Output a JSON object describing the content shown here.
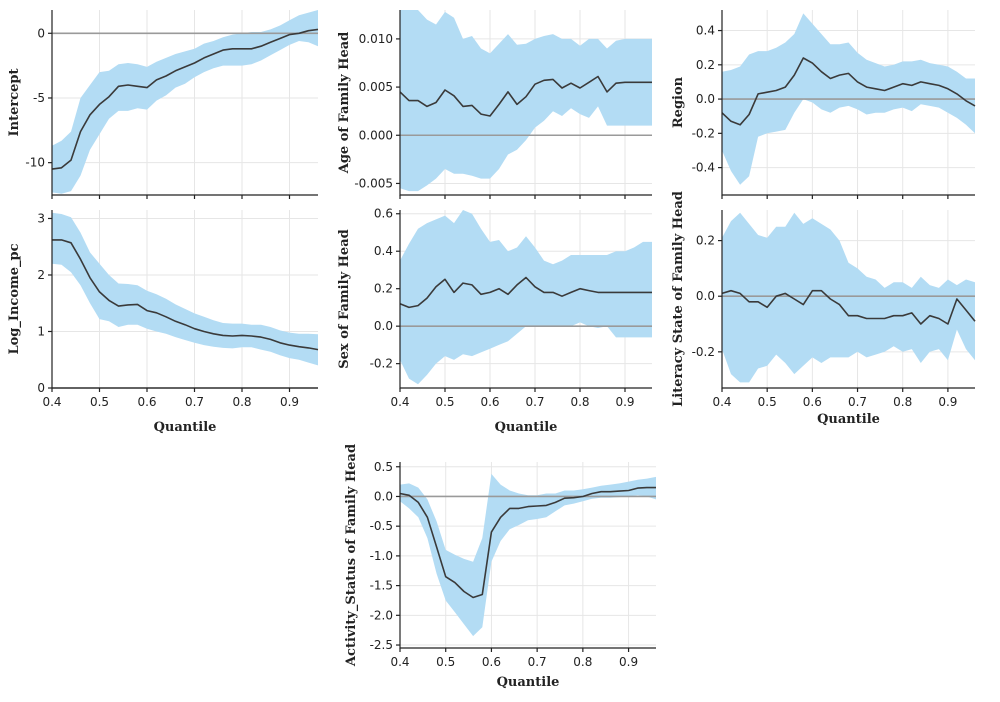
{
  "chart_data": [
    {
      "type": "line",
      "ylabel": "Intercept",
      "xlabel": "",
      "xlim": [
        0.4,
        0.96
      ],
      "ylim": [
        -12.5,
        1.8
      ],
      "xticks": [
        0.4,
        0.5,
        0.6,
        0.7,
        0.8,
        0.9
      ],
      "xtick_labels": [
        "",
        "",
        "",
        "",
        "",
        ""
      ],
      "yticks": [
        0,
        -5,
        -10
      ],
      "ytick_labels": [
        "0",
        "-5",
        "-10"
      ],
      "zero_line": 0,
      "x": [
        0.4,
        0.42,
        0.44,
        0.46,
        0.48,
        0.5,
        0.52,
        0.54,
        0.56,
        0.58,
        0.6,
        0.62,
        0.64,
        0.66,
        0.68,
        0.7,
        0.72,
        0.74,
        0.76,
        0.78,
        0.8,
        0.82,
        0.84,
        0.86,
        0.88,
        0.9,
        0.92,
        0.94,
        0.96
      ],
      "y": [
        -10.5,
        -10.4,
        -9.8,
        -7.6,
        -6.3,
        -5.5,
        -4.9,
        -4.1,
        -4.0,
        -4.1,
        -4.2,
        -3.6,
        -3.3,
        -2.9,
        -2.6,
        -2.3,
        -1.9,
        -1.6,
        -1.3,
        -1.2,
        -1.2,
        -1.2,
        -1.0,
        -0.7,
        -0.4,
        -0.1,
        0.0,
        0.2,
        0.3
      ],
      "lower": [
        -12.3,
        -12.4,
        -12.2,
        -11.0,
        -9.0,
        -7.8,
        -6.6,
        -6.0,
        -6.0,
        -5.8,
        -5.9,
        -5.2,
        -4.8,
        -4.2,
        -3.9,
        -3.4,
        -3.0,
        -2.7,
        -2.5,
        -2.5,
        -2.5,
        -2.4,
        -2.1,
        -1.7,
        -1.3,
        -0.9,
        -0.6,
        -0.7,
        -1.0
      ],
      "upper": [
        -8.7,
        -8.3,
        -7.6,
        -5.0,
        -4.0,
        -3.0,
        -2.9,
        -2.4,
        -2.3,
        -2.4,
        -2.6,
        -2.2,
        -1.9,
        -1.6,
        -1.4,
        -1.2,
        -0.8,
        -0.6,
        -0.3,
        -0.1,
        0.0,
        0.1,
        0.1,
        0.3,
        0.6,
        1.0,
        1.4,
        1.6,
        1.8
      ]
    },
    {
      "type": "line",
      "ylabel": "Age of Family Head",
      "xlabel": "",
      "xlim": [
        0.4,
        0.96
      ],
      "ylim": [
        -0.0062,
        0.013
      ],
      "xticks": [
        0.4,
        0.5,
        0.6,
        0.7,
        0.8,
        0.9
      ],
      "xtick_labels": [
        "",
        "",
        "",
        "",
        "",
        ""
      ],
      "yticks": [
        0.01,
        0.005,
        0.0,
        -0.005
      ],
      "ytick_labels": [
        "0.010",
        "0.005",
        "0.000",
        "-0.005"
      ],
      "zero_line": 0,
      "x": [
        0.4,
        0.42,
        0.44,
        0.46,
        0.48,
        0.5,
        0.52,
        0.54,
        0.56,
        0.58,
        0.6,
        0.62,
        0.64,
        0.66,
        0.68,
        0.7,
        0.72,
        0.74,
        0.76,
        0.78,
        0.8,
        0.82,
        0.84,
        0.86,
        0.88,
        0.9,
        0.92,
        0.94,
        0.96
      ],
      "y": [
        0.0045,
        0.0036,
        0.0036,
        0.003,
        0.0034,
        0.0047,
        0.0041,
        0.003,
        0.0031,
        0.0022,
        0.002,
        0.0032,
        0.0045,
        0.0032,
        0.004,
        0.0053,
        0.0057,
        0.0058,
        0.0049,
        0.0054,
        0.0049,
        0.0055,
        0.0061,
        0.0045,
        0.0054,
        0.0055,
        0.0055,
        0.0055,
        0.0055
      ],
      "lower": [
        -0.0055,
        -0.0058,
        -0.0058,
        -0.0052,
        -0.0045,
        -0.0035,
        -0.004,
        -0.004,
        -0.0042,
        -0.0045,
        -0.0045,
        -0.0035,
        -0.002,
        -0.0015,
        -0.0005,
        0.0008,
        0.0015,
        0.0025,
        0.002,
        0.0028,
        0.0022,
        0.0018,
        0.003,
        0.001,
        0.001,
        0.001,
        0.001,
        0.001,
        0.001
      ],
      "upper": [
        0.013,
        0.013,
        0.013,
        0.012,
        0.0115,
        0.0128,
        0.0122,
        0.01,
        0.0103,
        0.009,
        0.0085,
        0.0095,
        0.0105,
        0.0094,
        0.0095,
        0.01,
        0.0103,
        0.0105,
        0.01,
        0.01,
        0.0093,
        0.01,
        0.01,
        0.009,
        0.0098,
        0.01,
        0.01,
        0.01,
        0.01
      ]
    },
    {
      "type": "line",
      "ylabel": "Region",
      "xlabel": "",
      "xlim": [
        0.4,
        0.96
      ],
      "ylim": [
        -0.56,
        0.52
      ],
      "xticks": [
        0.4,
        0.5,
        0.6,
        0.7,
        0.8,
        0.9
      ],
      "xtick_labels": [
        "",
        "",
        "",
        "",
        "",
        ""
      ],
      "yticks": [
        0.4,
        0.2,
        0.0,
        -0.2,
        -0.4
      ],
      "ytick_labels": [
        "0.4",
        "0.2",
        "0.0",
        "-0.2",
        "-0.4"
      ],
      "zero_line": 0,
      "x": [
        0.4,
        0.42,
        0.44,
        0.46,
        0.48,
        0.5,
        0.52,
        0.54,
        0.56,
        0.58,
        0.6,
        0.62,
        0.64,
        0.66,
        0.68,
        0.7,
        0.72,
        0.74,
        0.76,
        0.78,
        0.8,
        0.82,
        0.84,
        0.86,
        0.88,
        0.9,
        0.92,
        0.94,
        0.96
      ],
      "y": [
        -0.08,
        -0.13,
        -0.15,
        -0.09,
        0.03,
        0.04,
        0.05,
        0.07,
        0.14,
        0.24,
        0.21,
        0.16,
        0.12,
        0.14,
        0.15,
        0.1,
        0.07,
        0.06,
        0.05,
        0.07,
        0.09,
        0.08,
        0.1,
        0.09,
        0.08,
        0.06,
        0.03,
        -0.01,
        -0.04
      ],
      "lower": [
        -0.3,
        -0.42,
        -0.5,
        -0.45,
        -0.22,
        -0.2,
        -0.19,
        -0.18,
        -0.08,
        0.0,
        -0.02,
        -0.06,
        -0.08,
        -0.05,
        -0.04,
        -0.06,
        -0.09,
        -0.08,
        -0.08,
        -0.06,
        -0.05,
        -0.07,
        -0.03,
        -0.04,
        -0.05,
        -0.08,
        -0.11,
        -0.15,
        -0.2
      ],
      "upper": [
        0.16,
        0.17,
        0.19,
        0.26,
        0.28,
        0.28,
        0.3,
        0.33,
        0.38,
        0.5,
        0.44,
        0.38,
        0.32,
        0.32,
        0.33,
        0.27,
        0.23,
        0.21,
        0.19,
        0.2,
        0.22,
        0.22,
        0.23,
        0.21,
        0.2,
        0.19,
        0.16,
        0.12,
        0.12
      ]
    },
    {
      "type": "line",
      "ylabel": "Log_Income_pc",
      "xlabel": "Quantile",
      "xlim": [
        0.4,
        0.96
      ],
      "ylim": [
        0,
        3.15
      ],
      "xticks": [
        0.4,
        0.5,
        0.6,
        0.7,
        0.8,
        0.9
      ],
      "xtick_labels": [
        "0.4",
        "0.5",
        "0.6",
        "0.7",
        "0.8",
        "0.9"
      ],
      "yticks": [
        3,
        2,
        1,
        0
      ],
      "ytick_labels": [
        "3",
        "2",
        "1",
        "0"
      ],
      "zero_line": 0,
      "x": [
        0.4,
        0.42,
        0.44,
        0.46,
        0.48,
        0.5,
        0.52,
        0.54,
        0.56,
        0.58,
        0.6,
        0.62,
        0.64,
        0.66,
        0.68,
        0.7,
        0.72,
        0.74,
        0.76,
        0.78,
        0.8,
        0.82,
        0.84,
        0.86,
        0.88,
        0.9,
        0.92,
        0.94,
        0.96
      ],
      "y": [
        2.62,
        2.62,
        2.57,
        2.28,
        1.95,
        1.7,
        1.55,
        1.45,
        1.47,
        1.48,
        1.37,
        1.33,
        1.26,
        1.18,
        1.12,
        1.05,
        1.0,
        0.96,
        0.93,
        0.92,
        0.93,
        0.92,
        0.9,
        0.86,
        0.8,
        0.76,
        0.73,
        0.71,
        0.68
      ],
      "lower": [
        2.2,
        2.18,
        2.05,
        1.82,
        1.5,
        1.22,
        1.18,
        1.08,
        1.12,
        1.12,
        1.05,
        1.0,
        0.96,
        0.9,
        0.85,
        0.8,
        0.76,
        0.73,
        0.71,
        0.7,
        0.72,
        0.72,
        0.68,
        0.64,
        0.58,
        0.53,
        0.5,
        0.45,
        0.4
      ],
      "upper": [
        3.1,
        3.08,
        3.02,
        2.75,
        2.4,
        2.2,
        2.0,
        1.85,
        1.84,
        1.82,
        1.72,
        1.66,
        1.58,
        1.48,
        1.4,
        1.32,
        1.26,
        1.2,
        1.15,
        1.14,
        1.14,
        1.12,
        1.12,
        1.08,
        1.02,
        0.98,
        0.96,
        0.96,
        0.95
      ]
    },
    {
      "type": "line",
      "ylabel": "Sex of Family Head",
      "xlabel": "Quantile",
      "xlim": [
        0.4,
        0.96
      ],
      "ylim": [
        -0.33,
        0.62
      ],
      "xticks": [
        0.4,
        0.5,
        0.6,
        0.7,
        0.8,
        0.9
      ],
      "xtick_labels": [
        "0.4",
        "0.5",
        "0.6",
        "0.7",
        "0.8",
        "0.9"
      ],
      "yticks": [
        0.6,
        0.4,
        0.2,
        0.0,
        -0.2
      ],
      "ytick_labels": [
        "0.6",
        "0.4",
        "0.2",
        "0.0",
        "-0.2"
      ],
      "zero_line": 0,
      "x": [
        0.4,
        0.42,
        0.44,
        0.46,
        0.48,
        0.5,
        0.52,
        0.54,
        0.56,
        0.58,
        0.6,
        0.62,
        0.64,
        0.66,
        0.68,
        0.7,
        0.72,
        0.74,
        0.76,
        0.78,
        0.8,
        0.82,
        0.84,
        0.86,
        0.88,
        0.9,
        0.92,
        0.94,
        0.96
      ],
      "y": [
        0.12,
        0.1,
        0.11,
        0.15,
        0.21,
        0.25,
        0.18,
        0.23,
        0.22,
        0.17,
        0.18,
        0.2,
        0.17,
        0.22,
        0.26,
        0.21,
        0.18,
        0.18,
        0.16,
        0.18,
        0.2,
        0.19,
        0.18,
        0.18,
        0.18,
        0.18,
        0.18,
        0.18,
        0.18
      ],
      "lower": [
        -0.18,
        -0.28,
        -0.31,
        -0.26,
        -0.2,
        -0.16,
        -0.18,
        -0.15,
        -0.16,
        -0.14,
        -0.12,
        -0.1,
        -0.08,
        -0.04,
        0.0,
        0.0,
        0.0,
        0.0,
        0.0,
        0.0,
        0.02,
        0.0,
        -0.01,
        0.0,
        -0.06,
        -0.06,
        -0.06,
        -0.06,
        -0.06
      ],
      "upper": [
        0.35,
        0.44,
        0.52,
        0.55,
        0.57,
        0.59,
        0.55,
        0.62,
        0.6,
        0.52,
        0.45,
        0.46,
        0.4,
        0.42,
        0.48,
        0.42,
        0.35,
        0.33,
        0.35,
        0.38,
        0.38,
        0.38,
        0.38,
        0.38,
        0.4,
        0.4,
        0.42,
        0.45,
        0.45
      ]
    },
    {
      "type": "line",
      "ylabel": "Literacy State of Family Head",
      "xlabel": "Quantile",
      "xlim": [
        0.4,
        0.96
      ],
      "ylim": [
        -0.33,
        0.31
      ],
      "xticks": [
        0.4,
        0.5,
        0.6,
        0.7,
        0.8,
        0.9
      ],
      "xtick_labels": [
        "0.4",
        "0.5",
        "0.6",
        "0.7",
        "0.8",
        "0.9"
      ],
      "yticks": [
        0.2,
        0.0,
        -0.2
      ],
      "ytick_labels": [
        "0.2",
        "0.0",
        "-0.2"
      ],
      "zero_line": 0,
      "x": [
        0.4,
        0.42,
        0.44,
        0.46,
        0.48,
        0.5,
        0.52,
        0.54,
        0.56,
        0.58,
        0.6,
        0.62,
        0.64,
        0.66,
        0.68,
        0.7,
        0.72,
        0.74,
        0.76,
        0.78,
        0.8,
        0.82,
        0.84,
        0.86,
        0.88,
        0.9,
        0.92,
        0.94,
        0.96
      ],
      "y": [
        0.01,
        0.02,
        0.01,
        -0.02,
        -0.02,
        -0.04,
        0.0,
        0.01,
        -0.01,
        -0.03,
        0.02,
        0.02,
        -0.01,
        -0.03,
        -0.07,
        -0.07,
        -0.08,
        -0.08,
        -0.08,
        -0.07,
        -0.07,
        -0.06,
        -0.1,
        -0.07,
        -0.08,
        -0.1,
        -0.01,
        -0.05,
        -0.09
      ],
      "lower": [
        -0.19,
        -0.28,
        -0.31,
        -0.31,
        -0.26,
        -0.25,
        -0.21,
        -0.24,
        -0.28,
        -0.25,
        -0.22,
        -0.24,
        -0.22,
        -0.22,
        -0.22,
        -0.2,
        -0.22,
        -0.21,
        -0.2,
        -0.18,
        -0.2,
        -0.19,
        -0.24,
        -0.2,
        -0.19,
        -0.23,
        -0.12,
        -0.19,
        -0.23
      ],
      "upper": [
        0.21,
        0.27,
        0.3,
        0.26,
        0.22,
        0.21,
        0.25,
        0.25,
        0.3,
        0.26,
        0.28,
        0.26,
        0.24,
        0.2,
        0.12,
        0.1,
        0.07,
        0.06,
        0.03,
        0.05,
        0.05,
        0.03,
        0.07,
        0.04,
        0.03,
        0.06,
        0.04,
        0.06,
        0.05
      ]
    },
    {
      "type": "line",
      "ylabel": "Activity_Status of Family Head",
      "xlabel": "Quantile",
      "xlim": [
        0.4,
        0.96
      ],
      "ylim": [
        -2.55,
        0.58
      ],
      "xticks": [
        0.4,
        0.5,
        0.6,
        0.7,
        0.8,
        0.9
      ],
      "xtick_labels": [
        "0.4",
        "0.5",
        "0.6",
        "0.7",
        "0.8",
        "0.9"
      ],
      "yticks": [
        0.5,
        0.0,
        -0.5,
        -1.0,
        -1.5,
        -2.0,
        -2.5
      ],
      "ytick_labels": [
        "0.5",
        "0.0",
        "-0.5",
        "-1.0",
        "-1.5",
        "-2.0",
        "-2.5"
      ],
      "zero_line": 0,
      "x": [
        0.4,
        0.42,
        0.44,
        0.46,
        0.48,
        0.5,
        0.52,
        0.54,
        0.56,
        0.58,
        0.6,
        0.62,
        0.64,
        0.66,
        0.68,
        0.7,
        0.72,
        0.74,
        0.76,
        0.78,
        0.8,
        0.82,
        0.84,
        0.86,
        0.88,
        0.9,
        0.92,
        0.94,
        0.96
      ],
      "y": [
        0.05,
        0.02,
        -0.1,
        -0.35,
        -0.85,
        -1.35,
        -1.45,
        -1.6,
        -1.7,
        -1.65,
        -0.6,
        -0.35,
        -0.2,
        -0.2,
        -0.17,
        -0.16,
        -0.15,
        -0.1,
        -0.03,
        -0.02,
        0.0,
        0.05,
        0.08,
        0.08,
        0.09,
        0.1,
        0.14,
        0.15,
        0.15
      ],
      "lower": [
        -0.08,
        -0.2,
        -0.35,
        -0.7,
        -1.3,
        -1.75,
        -1.95,
        -2.15,
        -2.35,
        -2.2,
        -1.1,
        -0.75,
        -0.55,
        -0.48,
        -0.4,
        -0.38,
        -0.35,
        -0.25,
        -0.15,
        -0.12,
        -0.08,
        -0.04,
        -0.02,
        -0.02,
        -0.01,
        0.0,
        0.02,
        0.0,
        -0.05
      ],
      "upper": [
        0.2,
        0.22,
        0.15,
        -0.05,
        -0.42,
        -0.9,
        -0.98,
        -1.05,
        -1.1,
        -0.7,
        0.38,
        0.2,
        0.1,
        0.05,
        0.02,
        0.02,
        0.05,
        0.05,
        0.1,
        0.1,
        0.12,
        0.15,
        0.18,
        0.2,
        0.22,
        0.25,
        0.28,
        0.3,
        0.33
      ]
    }
  ]
}
